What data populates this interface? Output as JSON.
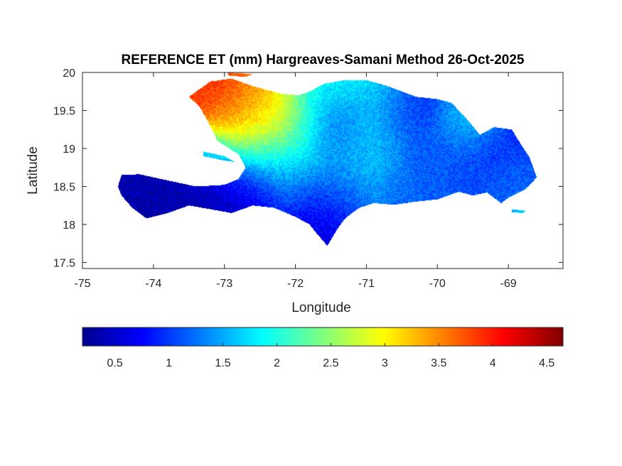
{
  "title": "REFERENCE ET (mm) Hargreaves-Samani Method  26-Oct-2025",
  "xlabel": "Longitude",
  "ylabel": "Latitude",
  "x_axis": {
    "range": [
      -75,
      -68.23
    ],
    "ticks": [
      -75,
      -74,
      -73,
      -72,
      -71,
      -70,
      -69
    ]
  },
  "y_axis": {
    "range": [
      17.42,
      20
    ],
    "ticks": [
      17.5,
      18,
      18.5,
      19,
      19.5,
      20
    ]
  },
  "colorbar": {
    "range": [
      0.2,
      4.65
    ],
    "ticks": [
      0.5,
      1,
      1.5,
      2,
      2.5,
      3,
      3.5,
      4,
      4.5
    ],
    "colormap": "jet"
  },
  "regions": {
    "hispaniola": {
      "lon_lat": [
        [
          -74.45,
          18.65
        ],
        [
          -74.2,
          18.66
        ],
        [
          -73.8,
          18.58
        ],
        [
          -73.4,
          18.5
        ],
        [
          -73.0,
          18.52
        ],
        [
          -72.8,
          18.6
        ],
        [
          -72.7,
          18.75
        ],
        [
          -72.8,
          18.92
        ],
        [
          -73.1,
          19.1
        ],
        [
          -73.2,
          19.3
        ],
        [
          -73.35,
          19.55
        ],
        [
          -73.5,
          19.68
        ],
        [
          -73.2,
          19.88
        ],
        [
          -72.9,
          19.92
        ],
        [
          -72.6,
          19.82
        ],
        [
          -72.2,
          19.72
        ],
        [
          -71.95,
          19.7
        ],
        [
          -71.8,
          19.75
        ],
        [
          -71.6,
          19.85
        ],
        [
          -71.3,
          19.9
        ],
        [
          -71.0,
          19.9
        ],
        [
          -70.7,
          19.82
        ],
        [
          -70.3,
          19.68
        ],
        [
          -70.0,
          19.65
        ],
        [
          -69.8,
          19.6
        ],
        [
          -69.55,
          19.35
        ],
        [
          -69.4,
          19.18
        ],
        [
          -69.2,
          19.28
        ],
        [
          -68.95,
          19.25
        ],
        [
          -68.82,
          19.05
        ],
        [
          -68.7,
          18.88
        ],
        [
          -68.6,
          18.62
        ],
        [
          -68.75,
          18.47
        ],
        [
          -68.9,
          18.4
        ],
        [
          -69.0,
          18.35
        ],
        [
          -69.1,
          18.28
        ],
        [
          -69.3,
          18.42
        ],
        [
          -69.5,
          18.38
        ],
        [
          -69.7,
          18.43
        ],
        [
          -70.0,
          18.33
        ],
        [
          -70.3,
          18.3
        ],
        [
          -70.6,
          18.26
        ],
        [
          -70.9,
          18.28
        ],
        [
          -71.1,
          18.22
        ],
        [
          -71.3,
          18.08
        ],
        [
          -71.4,
          17.95
        ],
        [
          -71.55,
          17.72
        ],
        [
          -71.7,
          17.88
        ],
        [
          -71.8,
          18.0
        ],
        [
          -72.0,
          18.1
        ],
        [
          -72.3,
          18.22
        ],
        [
          -72.6,
          18.25
        ],
        [
          -72.9,
          18.15
        ],
        [
          -73.2,
          18.2
        ],
        [
          -73.5,
          18.25
        ],
        [
          -73.8,
          18.15
        ],
        [
          -74.1,
          18.08
        ],
        [
          -74.3,
          18.22
        ],
        [
          -74.45,
          18.38
        ],
        [
          -74.5,
          18.5
        ]
      ]
    },
    "gonave_island": {
      "lon_lat": [
        [
          -73.3,
          18.96
        ],
        [
          -73.0,
          18.9
        ],
        [
          -72.85,
          18.82
        ],
        [
          -73.0,
          18.84
        ],
        [
          -73.3,
          18.9
        ]
      ]
    },
    "tortuga_island": {
      "lon_lat": [
        [
          -72.95,
          20.0
        ],
        [
          -72.6,
          19.98
        ],
        [
          -72.7,
          19.94
        ],
        [
          -72.95,
          19.96
        ]
      ]
    },
    "saona_island": {
      "lon_lat": [
        [
          -68.95,
          18.2
        ],
        [
          -68.75,
          18.18
        ],
        [
          -68.8,
          18.15
        ],
        [
          -68.95,
          18.16
        ]
      ]
    }
  },
  "et_field": [
    {
      "lon": -73.1,
      "lat": 19.75,
      "value": 4.1,
      "sigma_deg": 0.35
    },
    {
      "lon": -72.7,
      "lat": 19.7,
      "value": 3.8,
      "sigma_deg": 0.3
    },
    {
      "lon": -72.4,
      "lat": 19.55,
      "value": 3.4,
      "sigma_deg": 0.25
    },
    {
      "lon": -72.6,
      "lat": 19.3,
      "value": 2.8,
      "sigma_deg": 0.45
    },
    {
      "lon": -72.2,
      "lat": 19.2,
      "value": 2.6,
      "sigma_deg": 0.4
    },
    {
      "lon": -71.7,
      "lat": 19.75,
      "value": 1.9,
      "sigma_deg": 0.35
    },
    {
      "lon": -71.0,
      "lat": 19.75,
      "value": 1.9,
      "sigma_deg": 0.35
    },
    {
      "lon": -71.0,
      "lat": 19.1,
      "value": 1.9,
      "sigma_deg": 0.35
    },
    {
      "lon": -72.1,
      "lat": 18.75,
      "value": 1.2,
      "sigma_deg": 0.35
    },
    {
      "lon": -71.3,
      "lat": 18.55,
      "value": 1.4,
      "sigma_deg": 0.35
    },
    {
      "lon": -70.5,
      "lat": 19.5,
      "value": 0.9,
      "sigma_deg": 0.35
    },
    {
      "lon": -71.4,
      "lat": 19.3,
      "value": 0.8,
      "sigma_deg": 0.3
    },
    {
      "lon": -70.2,
      "lat": 18.7,
      "value": 1.2,
      "sigma_deg": 0.4
    },
    {
      "lon": -69.4,
      "lat": 18.8,
      "value": 0.9,
      "sigma_deg": 0.45
    },
    {
      "lon": -69.6,
      "lat": 19.3,
      "value": 1.8,
      "sigma_deg": 0.25
    },
    {
      "lon": -73.9,
      "lat": 18.35,
      "value": 0.4,
      "sigma_deg": 0.4
    },
    {
      "lon": -73.1,
      "lat": 18.35,
      "value": 0.4,
      "sigma_deg": 0.4
    },
    {
      "lon": -71.6,
      "lat": 18.1,
      "value": 0.6,
      "sigma_deg": 0.35
    },
    {
      "lon": -72.6,
      "lat": 18.42,
      "value": 0.6,
      "sigma_deg": 0.3
    },
    {
      "lon": -69.8,
      "lat": 18.5,
      "value": 1.2,
      "sigma_deg": 0.35
    },
    {
      "lon": -69.0,
      "lat": 18.45,
      "value": 1.3,
      "sigma_deg": 0.3
    },
    {
      "lon": -73.15,
      "lat": 18.93,
      "value": 1.8,
      "sigma_deg": 0.15
    },
    {
      "lon": -68.85,
      "lat": 18.18,
      "value": 2.0,
      "sigma_deg": 0.1
    }
  ],
  "colors": {
    "axis": "#262626",
    "frame": "#262626"
  }
}
